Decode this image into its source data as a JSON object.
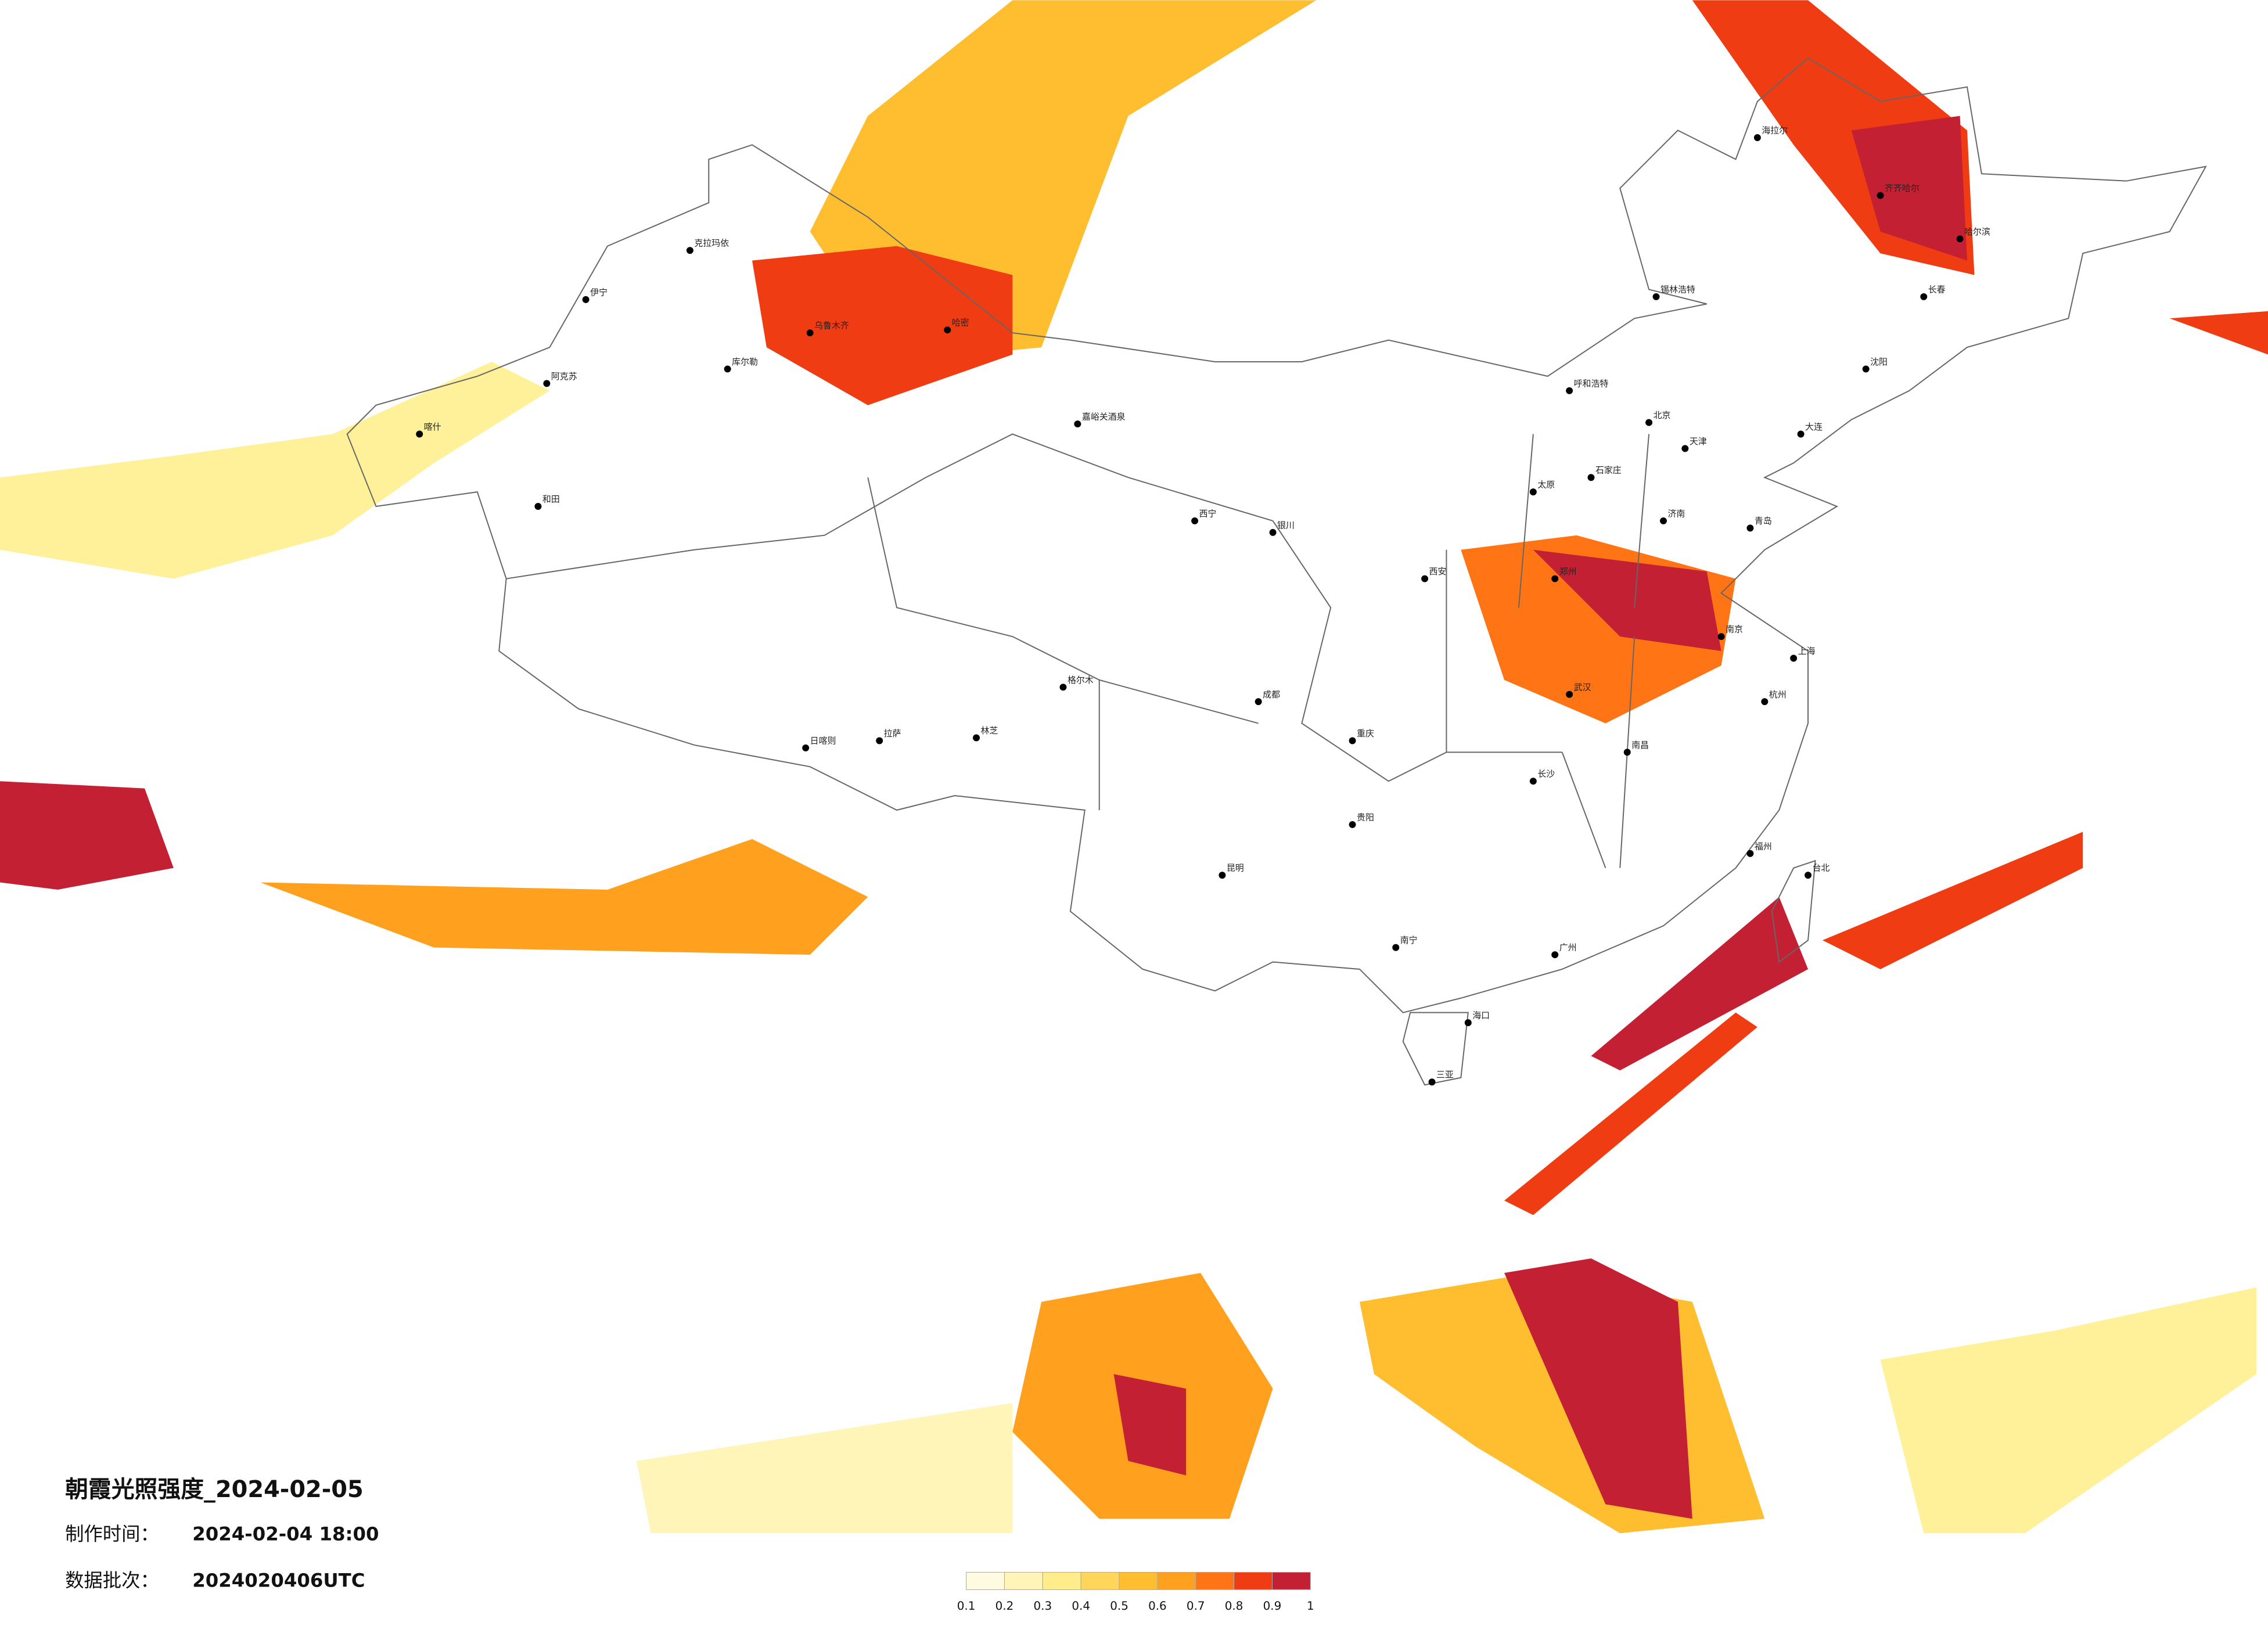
{
  "title": "朝霞光照强度_2024-02-05",
  "made_label": "制作时间：",
  "made_time": "2024-02-04 18:00",
  "batch_label": "数据批次：",
  "batch": "2024020406UTC",
  "colorbar": {
    "ticks": [
      0.1,
      0.2,
      0.3,
      0.4,
      0.5,
      0.6,
      0.7,
      0.8,
      0.9,
      1
    ],
    "colors": [
      "#fffbe0",
      "#fff5b8",
      "#ffec8a",
      "#ffd65a",
      "#ffbe30",
      "#ffa01e",
      "#ff7414",
      "#f03c12",
      "#c42034"
    ]
  },
  "cities": [
    "伊宁",
    "阿克苏",
    "喀什",
    "和田",
    "克拉玛依",
    "库尔勒",
    "乌鲁木齐",
    "哈密",
    "嘉峪关酒泉",
    "西宁",
    "拉萨",
    "日喀则",
    "林芝",
    "格尔木",
    "银川",
    "呼和浩特",
    "北京",
    "天津",
    "石家庄",
    "太原",
    "西安",
    "郑州",
    "济南",
    "武汉",
    "成都",
    "重庆",
    "长沙",
    "南昌",
    "南京",
    "上海",
    "杭州",
    "福州",
    "广州",
    "南宁",
    "昆明",
    "贵阳",
    "海口",
    "台北",
    "沈阳",
    "长春",
    "哈尔滨",
    "齐齐哈尔",
    "海拉尔",
    "锡林浩特",
    "大连",
    "青岛",
    "三亚"
  ]
}
